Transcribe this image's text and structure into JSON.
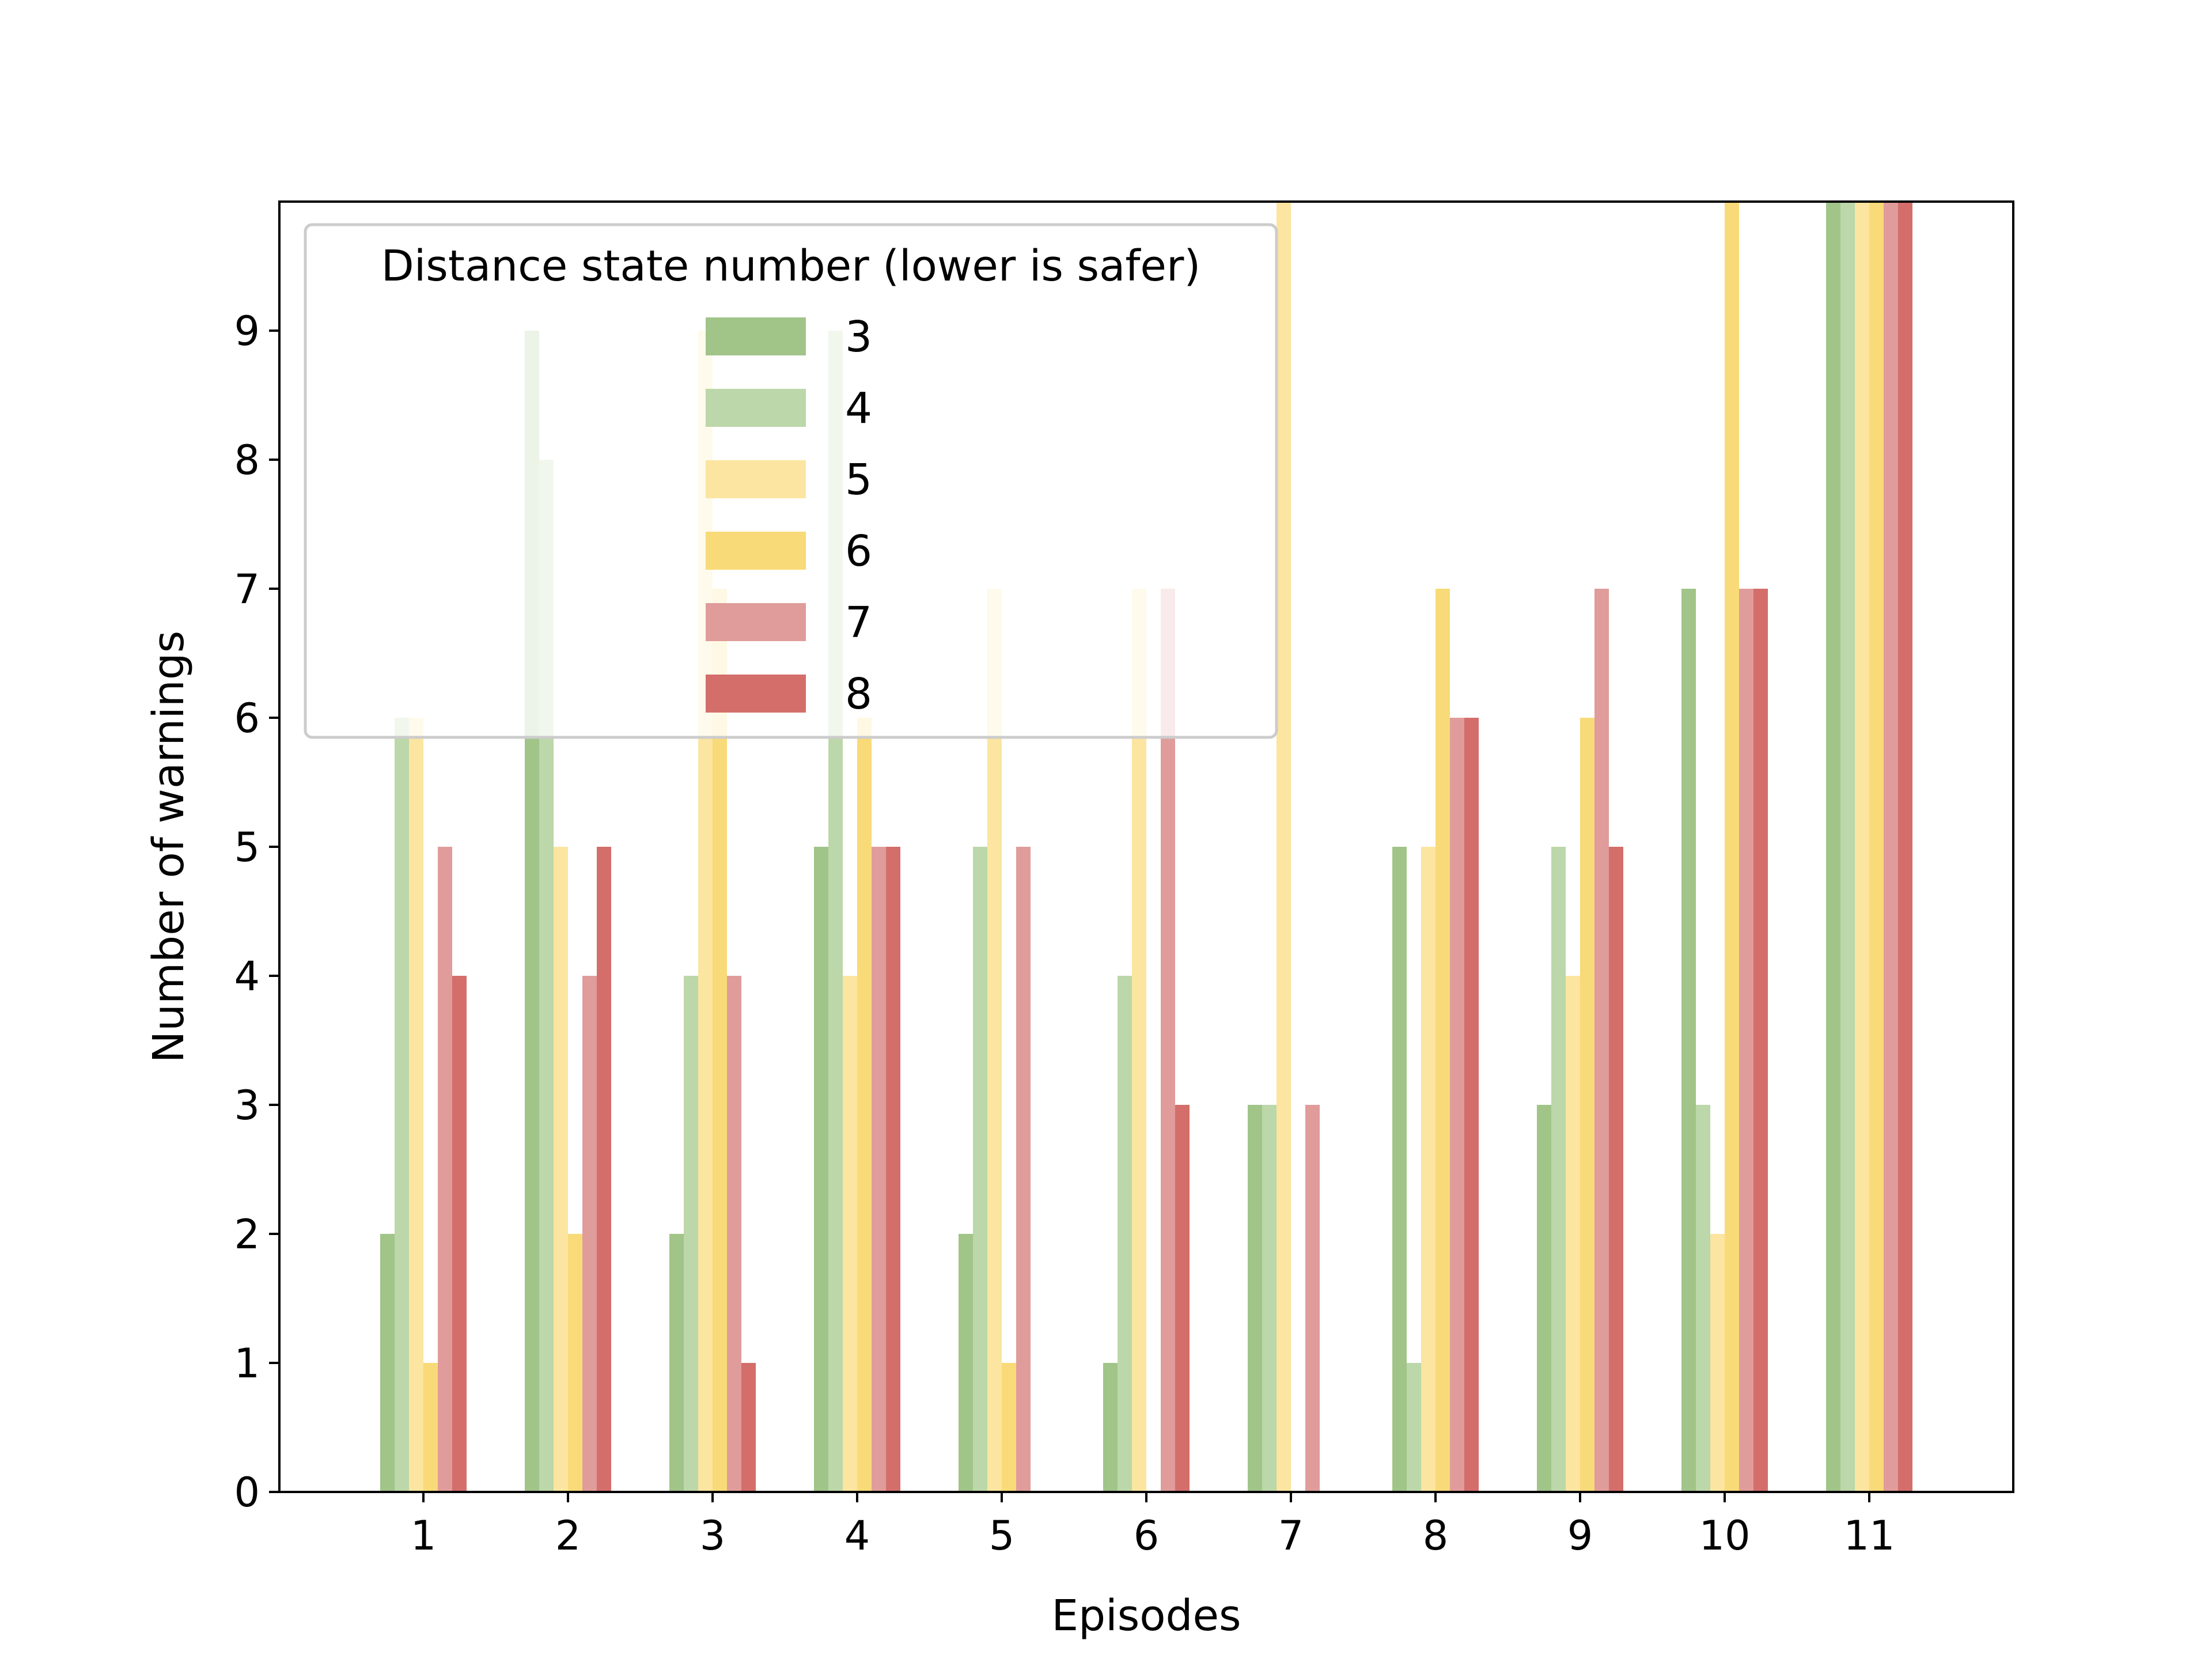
{
  "chart_data": {
    "type": "bar",
    "title": "",
    "xlabel": "Episodes",
    "ylabel": "Number of warnings",
    "ylim": [
      0,
      10
    ],
    "yticks": [
      "0",
      "1",
      "2",
      "3",
      "4",
      "5",
      "6",
      "7",
      "8",
      "9"
    ],
    "categories": [
      "1",
      "2",
      "3",
      "4",
      "5",
      "6",
      "7",
      "8",
      "9",
      "10",
      "11"
    ],
    "grid": false,
    "legend": {
      "title": "Distance state number (lower is safer)",
      "placement": "top-left"
    },
    "series": [
      {
        "name": "3",
        "color": "#a1c489",
        "values": [
          2,
          9,
          2,
          5,
          2,
          1,
          3,
          5,
          3,
          7,
          10
        ]
      },
      {
        "name": "4",
        "color": "#bcd7a9",
        "values": [
          6,
          8,
          4,
          9,
          5,
          4,
          3,
          1,
          5,
          3,
          10
        ]
      },
      {
        "name": "5",
        "color": "#fbe5a0",
        "values": [
          6,
          5,
          9,
          4,
          7,
          7,
          10,
          5,
          4,
          2,
          10
        ]
      },
      {
        "name": "6",
        "color": "#f9da78",
        "values": [
          1,
          2,
          7,
          6,
          1,
          0,
          0,
          7,
          6,
          10,
          10
        ]
      },
      {
        "name": "7",
        "color": "#e09c9a",
        "values": [
          5,
          4,
          4,
          5,
          5,
          7,
          3,
          6,
          7,
          7,
          10
        ]
      },
      {
        "name": "8",
        "color": "#d36e6a",
        "values": [
          4,
          5,
          1,
          5,
          0,
          3,
          0,
          6,
          5,
          7,
          10
        ]
      }
    ]
  }
}
